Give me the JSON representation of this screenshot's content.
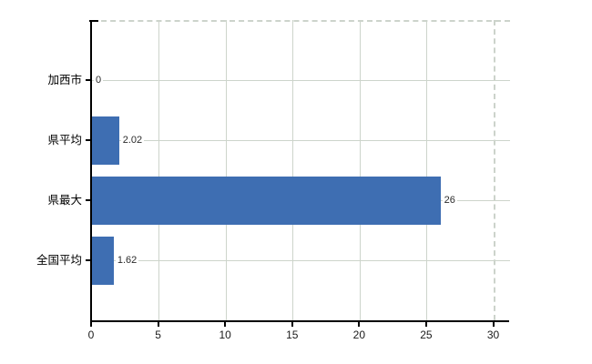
{
  "chart_data": {
    "type": "bar",
    "orientation": "horizontal",
    "title": "",
    "xlabel": "",
    "ylabel": "",
    "categories": [
      "加西市",
      "県平均",
      "県最大",
      "全国平均"
    ],
    "values": [
      0,
      2.02,
      26,
      1.62
    ],
    "value_labels": [
      "0",
      "2.02",
      "26",
      "1.62"
    ],
    "x_ticks": [
      0,
      5,
      10,
      15,
      20,
      25,
      30
    ],
    "xlim": [
      0,
      30
    ],
    "grid": true,
    "legend": false,
    "colors": {
      "bar": "#3e6eb2",
      "grid": "#cdd4cb",
      "dashed_border": "#ccd3cb",
      "axis": "#000000",
      "value_label_text": "#2b2b2b",
      "background": "#ffffff"
    }
  }
}
